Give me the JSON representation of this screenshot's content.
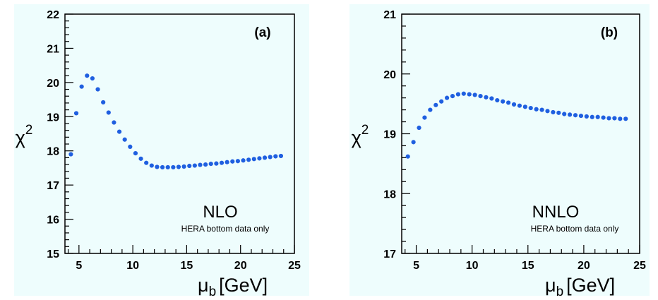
{
  "chart_data": [
    {
      "type": "scatter",
      "panel_label": "(a)",
      "order_label": "NLO",
      "note": "HERA bottom data only",
      "xlabel_main": "μ",
      "xlabel_sub": "b",
      "xlabel_unit": "[GeV]",
      "ylabel_main": "χ",
      "ylabel_sup": "2",
      "xlim": [
        3.7,
        25
      ],
      "ylim": [
        15,
        22
      ],
      "xticks": [
        5,
        10,
        15,
        20,
        25
      ],
      "yticks": [
        15,
        16,
        17,
        18,
        19,
        20,
        21,
        22
      ],
      "marker_color": "#1f5fe0",
      "background_color": "#eefdfd",
      "x": [
        4.25,
        4.75,
        5.25,
        5.75,
        6.25,
        6.75,
        7.25,
        7.75,
        8.25,
        8.75,
        9.25,
        9.75,
        10.25,
        10.75,
        11.25,
        11.75,
        12.25,
        12.75,
        13.25,
        13.75,
        14.25,
        14.75,
        15.25,
        15.75,
        16.25,
        16.75,
        17.25,
        17.75,
        18.25,
        18.75,
        19.25,
        19.75,
        20.25,
        20.75,
        21.25,
        21.75,
        22.25,
        22.75,
        23.25,
        23.75
      ],
      "y": [
        17.9,
        19.1,
        19.88,
        20.2,
        20.12,
        19.8,
        19.42,
        19.12,
        18.83,
        18.56,
        18.33,
        18.12,
        17.93,
        17.77,
        17.65,
        17.57,
        17.53,
        17.52,
        17.52,
        17.52,
        17.53,
        17.54,
        17.56,
        17.57,
        17.59,
        17.6,
        17.62,
        17.63,
        17.65,
        17.67,
        17.69,
        17.7,
        17.72,
        17.74,
        17.76,
        17.78,
        17.8,
        17.82,
        17.84,
        17.85
      ]
    },
    {
      "type": "scatter",
      "panel_label": "(b)",
      "order_label": "NNLO",
      "note": "HERA bottom data only",
      "xlabel_main": "μ",
      "xlabel_sub": "b",
      "xlabel_unit": "[GeV]",
      "ylabel_main": "χ",
      "ylabel_sup": "2",
      "xlim": [
        3.7,
        25
      ],
      "ylim": [
        17,
        21
      ],
      "xticks": [
        5,
        10,
        15,
        20,
        25
      ],
      "yticks": [
        17,
        18,
        19,
        20,
        21
      ],
      "marker_color": "#1f5fe0",
      "background_color": "#eefdfd",
      "x": [
        4.25,
        4.75,
        5.25,
        5.75,
        6.25,
        6.75,
        7.25,
        7.75,
        8.25,
        8.75,
        9.25,
        9.75,
        10.25,
        10.75,
        11.25,
        11.75,
        12.25,
        12.75,
        13.25,
        13.75,
        14.25,
        14.75,
        15.25,
        15.75,
        16.25,
        16.75,
        17.25,
        17.75,
        18.25,
        18.75,
        19.25,
        19.75,
        20.25,
        20.75,
        21.25,
        21.75,
        22.25,
        22.75,
        23.25,
        23.75
      ],
      "y": [
        18.62,
        18.86,
        19.1,
        19.27,
        19.4,
        19.48,
        19.54,
        19.6,
        19.63,
        19.66,
        19.67,
        19.66,
        19.65,
        19.63,
        19.61,
        19.59,
        19.56,
        19.54,
        19.52,
        19.49,
        19.47,
        19.45,
        19.43,
        19.41,
        19.4,
        19.38,
        19.36,
        19.35,
        19.33,
        19.32,
        19.31,
        19.3,
        19.29,
        19.28,
        19.28,
        19.27,
        19.26,
        19.26,
        19.25,
        19.25
      ]
    }
  ]
}
